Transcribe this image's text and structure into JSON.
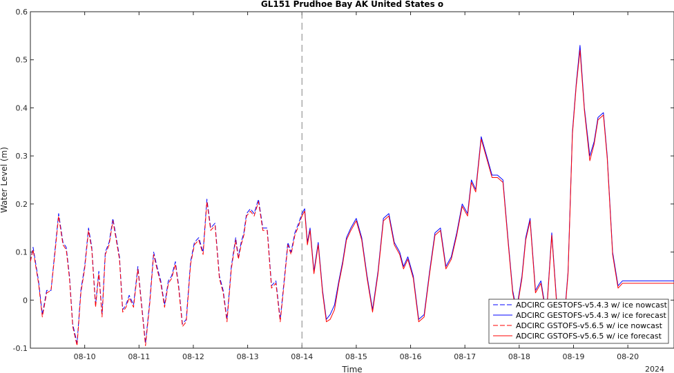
{
  "chart_data": {
    "type": "line",
    "title": "GL151 Prudhoe Bay AK United States o",
    "xlabel": "Time",
    "ylabel": "Water Level (m)",
    "x_year_label": "2024",
    "x_unit": "days (August 2024)",
    "xlim": [
      9.0,
      20.85
    ],
    "ylim": [
      -0.1,
      0.6
    ],
    "y_ticks": [
      -0.1,
      0,
      0.1,
      0.2,
      0.3,
      0.4,
      0.5,
      0.6
    ],
    "y_tick_labels": [
      "-0.1",
      "0",
      "0.1",
      "0.2",
      "0.3",
      "0.4",
      "0.5",
      "0.6"
    ],
    "x_ticks": [
      10,
      11,
      12,
      13,
      14,
      15,
      16,
      17,
      18,
      19,
      20
    ],
    "x_tick_labels": [
      "08-10",
      "08-11",
      "08-12",
      "08-13",
      "08-14",
      "08-15",
      "08-16",
      "08-17",
      "08-18",
      "08-19",
      "08-20"
    ],
    "forecast_start": 14.0,
    "grid": false,
    "legend_position": "bottom-right",
    "nowcast": {
      "x": [
        9.0,
        9.05,
        9.15,
        9.22,
        9.3,
        9.38,
        9.45,
        9.52,
        9.6,
        9.66,
        9.72,
        9.78,
        9.86,
        9.93,
        10.0,
        10.07,
        10.13,
        10.2,
        10.26,
        10.32,
        10.38,
        10.45,
        10.52,
        10.58,
        10.64,
        10.7,
        10.76,
        10.82,
        10.9,
        10.98,
        11.05,
        11.12,
        11.2,
        11.27,
        11.33,
        11.4,
        11.47,
        11.54,
        11.6,
        11.67,
        11.73,
        11.8,
        11.87,
        11.95,
        12.02,
        12.1,
        12.18,
        12.25,
        12.32,
        12.4,
        12.48,
        12.55,
        12.62,
        12.7,
        12.78,
        12.83,
        12.88,
        12.93,
        12.98,
        13.05,
        13.12,
        13.2,
        13.28,
        13.36,
        13.44,
        13.52,
        13.6,
        13.68,
        13.74,
        13.8,
        13.87,
        13.94,
        14.0
      ],
      "v543": [
        0.08,
        0.11,
        0.04,
        -0.03,
        0.02,
        0.02,
        0.1,
        0.18,
        0.12,
        0.11,
        0.05,
        -0.05,
        -0.09,
        0.02,
        0.07,
        0.15,
        0.11,
        -0.01,
        0.06,
        -0.03,
        0.1,
        0.12,
        0.17,
        0.13,
        0.09,
        -0.02,
        -0.01,
        0.01,
        -0.01,
        0.07,
        -0.01,
        -0.09,
        0.0,
        0.1,
        0.07,
        0.04,
        -0.01,
        0.04,
        0.05,
        0.08,
        0.03,
        -0.05,
        -0.04,
        0.08,
        0.12,
        0.13,
        0.1,
        0.21,
        0.15,
        0.16,
        0.05,
        0.02,
        -0.04,
        0.07,
        0.13,
        0.09,
        0.12,
        0.14,
        0.18,
        0.19,
        0.18,
        0.21,
        0.15,
        0.15,
        0.03,
        0.04,
        -0.04,
        0.05,
        0.12,
        0.1,
        0.14,
        0.16,
        0.18
      ],
      "v565": [
        0.08,
        0.105,
        0.035,
        -0.035,
        0.015,
        0.02,
        0.095,
        0.175,
        0.115,
        0.105,
        0.045,
        -0.055,
        -0.095,
        0.015,
        0.065,
        0.145,
        0.105,
        -0.015,
        0.055,
        -0.035,
        0.095,
        0.115,
        0.165,
        0.125,
        0.085,
        -0.025,
        -0.015,
        0.005,
        -0.015,
        0.065,
        -0.015,
        -0.095,
        -0.005,
        0.095,
        0.065,
        0.035,
        -0.015,
        0.035,
        0.045,
        0.075,
        0.025,
        -0.055,
        -0.045,
        0.075,
        0.115,
        0.125,
        0.095,
        0.205,
        0.145,
        0.155,
        0.045,
        0.015,
        -0.045,
        0.065,
        0.125,
        0.085,
        0.115,
        0.135,
        0.175,
        0.185,
        0.175,
        0.205,
        0.145,
        0.145,
        0.025,
        0.035,
        -0.045,
        0.045,
        0.115,
        0.095,
        0.135,
        0.155,
        0.175
      ]
    },
    "forecast": {
      "x": [
        14.0,
        14.05,
        14.1,
        14.15,
        14.22,
        14.3,
        14.38,
        14.45,
        14.52,
        14.6,
        14.68,
        14.75,
        14.82,
        14.9,
        15.0,
        15.1,
        15.2,
        15.3,
        15.4,
        15.5,
        15.6,
        15.7,
        15.8,
        15.87,
        15.95,
        16.05,
        16.15,
        16.25,
        16.35,
        16.45,
        16.55,
        16.65,
        16.75,
        16.85,
        16.95,
        17.05,
        17.12,
        17.2,
        17.3,
        17.4,
        17.5,
        17.6,
        17.7,
        17.8,
        17.88,
        17.95,
        18.05,
        18.12,
        18.2,
        18.3,
        18.4,
        18.5,
        18.6,
        18.7,
        18.8,
        18.9,
        18.98,
        19.05,
        19.12,
        19.2,
        19.3,
        19.38,
        19.45,
        19.55,
        19.62,
        19.72,
        19.82,
        19.9,
        19.98,
        20.05,
        20.1,
        20.18,
        20.25,
        20.32,
        20.4,
        20.47,
        20.53,
        20.6,
        20.68,
        20.75,
        20.85
      ],
      "v543": [
        0.18,
        0.19,
        0.12,
        0.15,
        0.06,
        0.12,
        0.02,
        -0.04,
        -0.03,
        -0.01,
        0.04,
        0.08,
        0.13,
        0.15,
        0.17,
        0.13,
        0.05,
        -0.02,
        0.06,
        0.17,
        0.18,
        0.12,
        0.1,
        0.07,
        0.09,
        0.05,
        -0.04,
        -0.03,
        0.06,
        0.14,
        0.15,
        0.07,
        0.09,
        0.14,
        0.2,
        0.18,
        0.25,
        0.23,
        0.34,
        0.3,
        0.26,
        0.26,
        0.25,
        0.12,
        0.02,
        -0.02,
        0.05,
        0.13,
        0.17,
        0.02,
        0.04,
        -0.03,
        0.14,
        -0.02,
        -0.08,
        0.06,
        0.35,
        0.45,
        0.53,
        0.4,
        0.3,
        0.33,
        0.38,
        0.39,
        0.3,
        0.1,
        0.03,
        0.04,
        0.04,
        0.04,
        0.04,
        0.04,
        0.04,
        0.04,
        0.04,
        0.04,
        0.04,
        0.04,
        0.04,
        0.04,
        0.04
      ],
      "v565": [
        0.175,
        0.185,
        0.115,
        0.145,
        0.055,
        0.115,
        0.015,
        -0.045,
        -0.04,
        -0.02,
        0.035,
        0.075,
        0.125,
        0.145,
        0.165,
        0.125,
        0.045,
        -0.025,
        0.055,
        0.165,
        0.175,
        0.115,
        0.095,
        0.065,
        0.085,
        0.045,
        -0.045,
        -0.035,
        0.055,
        0.135,
        0.145,
        0.065,
        0.085,
        0.135,
        0.195,
        0.175,
        0.245,
        0.225,
        0.335,
        0.295,
        0.255,
        0.255,
        0.245,
        0.115,
        0.015,
        -0.025,
        0.045,
        0.125,
        0.165,
        0.015,
        0.035,
        -0.035,
        0.135,
        -0.025,
        -0.085,
        0.055,
        0.345,
        0.445,
        0.52,
        0.395,
        0.29,
        0.325,
        0.375,
        0.385,
        0.295,
        0.095,
        0.025,
        0.035,
        0.035,
        0.035,
        0.035,
        0.035,
        0.035,
        0.035,
        0.035,
        0.035,
        0.035,
        0.035,
        0.035,
        0.035,
        0.035
      ]
    },
    "series": [
      {
        "name": "ADCIRC GESTOFS-v5.4.3 w/ ice nowcast",
        "color": "#0000ff",
        "style": "dashed",
        "segment": "nowcast",
        "values_key": "v543"
      },
      {
        "name": "ADCIRC GESTOFS-v5.4.3 w/ ice forecast",
        "color": "#0000ff",
        "style": "solid",
        "segment": "forecast",
        "values_key": "v543"
      },
      {
        "name": "ADCIRC GSTOFS-v5.6.5 w/ ice nowcast",
        "color": "#ff0000",
        "style": "dashed",
        "segment": "nowcast",
        "values_key": "v565"
      },
      {
        "name": "ADCIRC GSTOFS-v5.6.5 w/ ice forecast",
        "color": "#ff0000",
        "style": "solid",
        "segment": "forecast",
        "values_key": "v565"
      }
    ]
  }
}
